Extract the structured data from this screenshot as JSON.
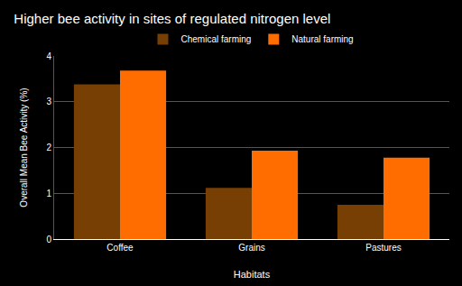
{
  "chart_data": {
    "type": "bar",
    "title": "Higher bee activity in sites of regulated nitrogen level",
    "x_label": "Habitats",
    "y_label": "Overall Mean Bee Activity (%)",
    "categories": [
      "Coffee",
      "Grains",
      "Pastures"
    ],
    "series": [
      {
        "name": "Chemical farming",
        "color": "#783f04",
        "values": [
          3.38,
          1.12,
          0.75
        ]
      },
      {
        "name": "Natural farming",
        "color": "#ff6d01",
        "values": [
          3.68,
          1.93,
          1.78
        ]
      }
    ],
    "ylim": [
      0,
      4
    ],
    "yticks": [
      0,
      1,
      2,
      3,
      4
    ],
    "grid": true,
    "legend": "top"
  }
}
